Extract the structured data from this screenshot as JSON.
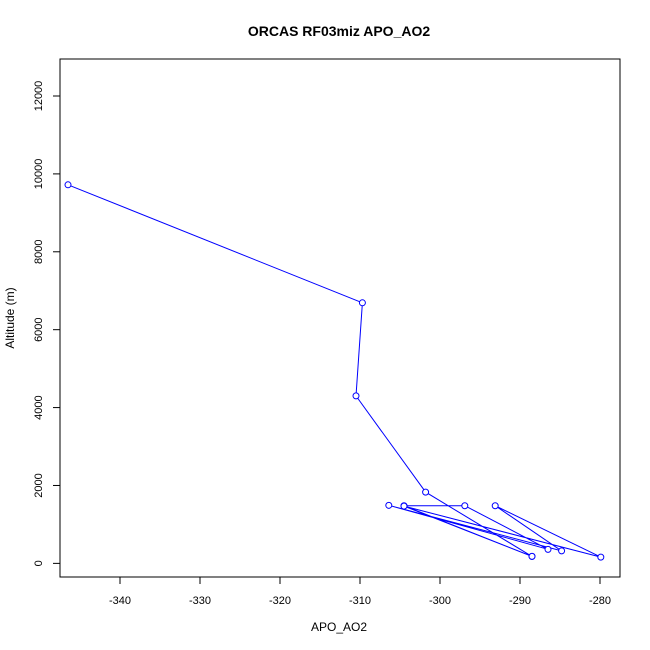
{
  "chart_data": {
    "type": "line",
    "title": "ORCAS RF03miz APO_AO2",
    "xlabel": "APO_AO2",
    "ylabel": "Altitude (m)",
    "xlim": [
      -347.5,
      -277.5
    ],
    "ylim": [
      -350,
      12950
    ],
    "x_ticks": [
      -340,
      -330,
      -320,
      -310,
      -300,
      -290,
      -280
    ],
    "y_ticks": [
      0,
      2000,
      4000,
      6000,
      8000,
      10000,
      12000
    ],
    "line_color": "#0000ff",
    "marker": "open-circle",
    "series": [
      {
        "x": [
          -346.5,
          -309.7,
          -310.5,
          -301.8,
          -288.5,
          -304.5,
          -296.9,
          -286.5,
          -306.4,
          -284.8,
          -293.1,
          -279.9,
          -304.5,
          -288.5
        ],
        "y": [
          9720,
          6690,
          4300,
          1830,
          180,
          1480,
          1480,
          360,
          1490,
          320,
          1480,
          160,
          1470,
          180
        ]
      }
    ]
  }
}
